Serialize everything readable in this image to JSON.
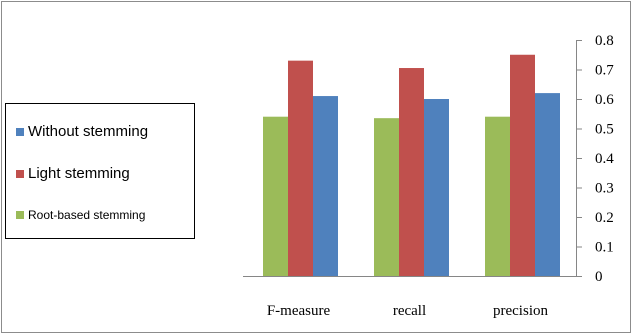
{
  "chart_data": {
    "type": "bar",
    "categories": [
      "F-measure",
      "recall",
      "precision"
    ],
    "series": [
      {
        "name": "Root-based stemming",
        "values": [
          0.54,
          0.535,
          0.54
        ],
        "color": "#9bbb59"
      },
      {
        "name": "Light stemming",
        "values": [
          0.73,
          0.705,
          0.75
        ],
        "color": "#c0504d"
      },
      {
        "name": "Without stemming",
        "values": [
          0.61,
          0.6,
          0.62
        ],
        "color": "#4f81bd"
      }
    ],
    "legend_order": [
      2,
      1,
      0
    ],
    "ylim": [
      0,
      0.8
    ],
    "yticks": [
      "0",
      "0.1",
      "0.2",
      "0.3",
      "0.4",
      "0.5",
      "0.6",
      "0.7",
      "0.8"
    ],
    "ytick_values": [
      0,
      0.1,
      0.2,
      0.3,
      0.4,
      0.5,
      0.6,
      0.7,
      0.8
    ],
    "y_axis_position": "right",
    "legend_position": "left",
    "grid": false,
    "title": "",
    "xlabel": "",
    "ylabel": ""
  }
}
